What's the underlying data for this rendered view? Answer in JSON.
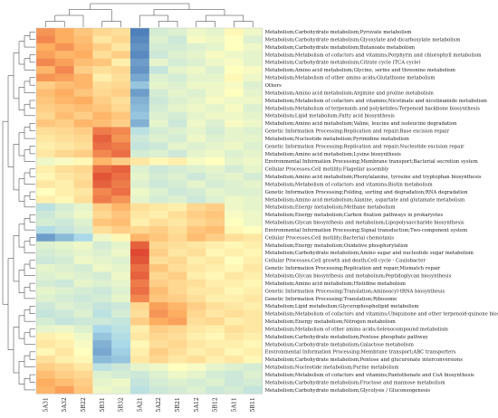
{
  "chart_data": {
    "type": "heatmap",
    "title": "",
    "columns": [
      "5A31",
      "5A32",
      "5B22",
      "5B31",
      "5B32",
      "5A21",
      "5A22",
      "5B21",
      "5A12",
      "5B12",
      "5A11",
      "5B11"
    ],
    "rows": [
      "Metabolism;Carbohydrate metabolism;Pyruvate metabolism",
      "Metabolism;Carbohydrate metabolism;Glyoxylate and dicarboxylate metabolism",
      "Metabolism;Carbohydrate metabolism;Butanoate metabolism",
      "Metabolism;Metabolism of cofactors and vitamins;Porphyrin and chlorophyll metabolism",
      "Metabolism;Carbohydrate metabolism;Citrate cycle (TCA cycle)",
      "Metabolism;Amino acid metabolism;Glycine, serine and threonine metabolism",
      "Metabolism;Metabolism of other amino acids;Glutathione metabolism",
      "Others",
      "Metabolism;Amino acid metabolism;Arginine and proline metabolism",
      "Metabolism;Metabolism of cofactors and vitamins;Nicotinate and nicotinamide metabolism",
      "Metabolism;Metabolism of terpenoids and polyketides;Terpenoid backbone biosynthesis",
      "Metabolism;Lipid metabolism;Fatty acid biosynthesis",
      "Metabolism;Amino acid metabolism;Valine, leucine and isoleucine degradation",
      "Genetic Information Processing;Replication and repair;Base excision repair",
      "Metabolism;Nucleotide metabolism;Pyrimidine metabolism",
      "Genetic Information Processing;Replication and repair;Nucleotide excision repair",
      "Metabolism;Amino acid metabolism;Lysine biosynthesis",
      "Environmental Information Processing;Membrane transport;Bacterial secretion system",
      "Cellular Processes;Cell motility;Flagellar assembly",
      "Metabolism;Amino acid metabolism;Phenylalanine, tyrosine and tryptophan biosynthesis",
      "Metabolism;Metabolism of cofactors and vitamins;Biotin metabolism",
      "Genetic Information Processing;Folding, sorting and degradation;RNA degradation",
      "Metabolism;Amino acid metabolism;Alanine, aspartate and glutamate metabolism",
      "Metabolism;Energy metabolism;Methane metabolism",
      "Metabolism;Energy metabolism;Carbon fixation pathways in prokaryotes",
      "Metabolism;Glycan biosynthesis and metabolism;Lipopolysaccharide biosynthesis",
      "Environmental Information Processing;Signal transduction;Two-component system",
      "Cellular Processes;Cell motility;Bacterial chemotaxis",
      "Metabolism;Energy metabolism;Oxidative phosphorylation",
      "Metabolism;Carbohydrate metabolism;Amino sugar and nucleotide sugar metabolism",
      "Cellular Processes;Cell growth and death;Cell cycle - Caulobacter",
      "Genetic Information Processing;Replication and repair;Mismatch repair",
      "Metabolism;Glycan biosynthesis and metabolism;Peptidoglycan biosynthesis",
      "Metabolism;Amino acid metabolism;Histidine metabolism",
      "Genetic Information Processing;Translation;Aminoacyl-tRNA biosynthesis",
      "Genetic Information Processing;Translation;Ribosome",
      "Metabolism;Lipid metabolism;Glycerophospholipid metabolism",
      "Metabolism;Metabolism of cofactors and vitamins;Ubiquinone and other terpenoid-quinone biosynthesis",
      "Metabolism;Energy metabolism;Nitrogen metabolism",
      "Metabolism;Metabolism of other amino acids;Selenocompound metabolism",
      "Metabolism;Carbohydrate metabolism;Pentose phosphate pathway",
      "Metabolism;Carbohydrate metabolism;Galactose metabolism",
      "Environmental Information Processing;Membrane transport;ABC transporters",
      "Metabolism;Carbohydrate metabolism;Pentose and glucuronate interconversions",
      "Metabolism;Nucleotide metabolism;Purine metabolism",
      "Metabolism;Metabolism of cofactors and vitamins;Pantothenate and CoA biosynthesis",
      "Metabolism;Carbohydrate metabolism;Fructose and mannose metabolism",
      "Metabolism;Carbohydrate metabolism;Glycolysis / Gluconeogenesis"
    ],
    "scale": "z-score, -2 (blue) to 2 (red)",
    "colors": {
      "low": "#4575b4",
      "mid_low": "#abd9e9",
      "mid": "#ffffbf",
      "mid_high": "#fdae61",
      "high": "#d73027"
    },
    "values": [
      [
        1.2,
        1.0,
        0.7,
        0.5,
        0.4,
        -1.9,
        -0.5,
        -0.4,
        -0.2,
        -0.3,
        0.1,
        -0.2
      ],
      [
        1.3,
        1.0,
        0.8,
        0.3,
        0.5,
        -1.8,
        -0.4,
        -0.6,
        -0.1,
        -0.2,
        0.0,
        -0.4
      ],
      [
        1.0,
        1.2,
        0.9,
        0.6,
        0.3,
        -1.7,
        -0.5,
        -0.5,
        -0.4,
        -0.3,
        0.0,
        -0.2
      ],
      [
        1.1,
        0.9,
        1.0,
        0.4,
        0.6,
        -1.8,
        -0.6,
        -0.4,
        -0.3,
        -0.1,
        -0.2,
        -0.3
      ],
      [
        1.3,
        1.1,
        0.8,
        0.7,
        0.2,
        -1.6,
        -0.3,
        -0.5,
        -0.4,
        -0.2,
        -0.1,
        -0.3
      ],
      [
        0.9,
        1.3,
        0.6,
        0.4,
        0.5,
        -1.7,
        -0.7,
        -0.3,
        -0.2,
        -0.4,
        0.0,
        -0.1
      ],
      [
        1.2,
        1.1,
        0.9,
        0.2,
        0.4,
        -1.5,
        -0.4,
        -0.5,
        -0.3,
        -0.3,
        0.1,
        -0.2
      ],
      [
        0.6,
        0.8,
        0.9,
        0.4,
        0.5,
        -1.2,
        -0.3,
        -0.4,
        -0.2,
        -0.2,
        -0.1,
        -0.4
      ],
      [
        0.8,
        1.0,
        0.7,
        0.5,
        0.6,
        -1.6,
        -0.5,
        -0.3,
        -0.4,
        -0.2,
        0.0,
        -0.3
      ],
      [
        0.7,
        0.9,
        1.0,
        0.6,
        0.4,
        -1.4,
        -0.6,
        -0.4,
        -0.3,
        -0.1,
        -0.2,
        -0.2
      ],
      [
        0.6,
        0.7,
        0.8,
        0.7,
        0.5,
        -1.3,
        -0.5,
        -0.3,
        -0.2,
        -0.3,
        -0.1,
        -0.4
      ],
      [
        0.5,
        0.8,
        0.6,
        0.9,
        0.7,
        -1.2,
        -0.4,
        -0.5,
        -0.3,
        -0.2,
        -0.2,
        -0.3
      ],
      [
        0.7,
        0.6,
        0.9,
        0.8,
        0.6,
        -1.4,
        -0.3,
        -0.6,
        -0.2,
        -0.4,
        -0.1,
        -0.2
      ],
      [
        0.4,
        0.5,
        0.6,
        1.4,
        1.3,
        -0.8,
        -0.5,
        -0.4,
        -0.3,
        -0.5,
        -0.3,
        -0.4
      ],
      [
        0.3,
        0.4,
        0.5,
        1.6,
        1.2,
        -0.6,
        -0.4,
        -0.5,
        -0.2,
        -0.4,
        -0.3,
        -0.3
      ],
      [
        0.2,
        0.3,
        0.4,
        1.5,
        1.4,
        -0.7,
        -0.6,
        -0.3,
        -0.4,
        -0.3,
        -0.2,
        -0.4
      ],
      [
        0.3,
        0.5,
        0.6,
        1.3,
        1.5,
        -0.5,
        -0.4,
        -0.6,
        -0.3,
        -0.2,
        -0.4,
        -0.3
      ],
      [
        -0.2,
        -0.1,
        0.1,
        0.9,
        0.6,
        0.3,
        0.1,
        0.2,
        -0.1,
        0.0,
        -0.3,
        -0.2
      ],
      [
        0.2,
        0.4,
        0.5,
        1.5,
        1.6,
        -0.4,
        -0.6,
        -0.5,
        -0.4,
        -0.3,
        -0.5,
        -0.3
      ],
      [
        0.1,
        0.3,
        0.4,
        1.7,
        1.5,
        -0.3,
        -0.5,
        -0.4,
        -0.6,
        -0.4,
        -0.3,
        -0.5
      ],
      [
        0.3,
        0.2,
        0.5,
        1.6,
        1.4,
        -0.4,
        -0.6,
        -0.5,
        -0.3,
        -0.5,
        -0.4,
        -0.3
      ],
      [
        0.0,
        0.2,
        0.3,
        1.3,
        1.5,
        -0.2,
        -0.4,
        -0.6,
        -0.5,
        -0.3,
        -0.4,
        -0.4
      ],
      [
        0.2,
        0.1,
        0.4,
        1.4,
        1.2,
        -0.3,
        -0.5,
        -0.4,
        -0.6,
        -0.4,
        -0.2,
        -0.3
      ],
      [
        -0.8,
        -0.5,
        -0.3,
        0.6,
        0.9,
        0.4,
        0.3,
        0.2,
        0.5,
        0.6,
        -0.2,
        -0.3
      ],
      [
        -0.6,
        -0.4,
        -0.2,
        0.5,
        0.7,
        0.3,
        0.2,
        0.4,
        0.6,
        0.7,
        -0.1,
        -0.2
      ],
      [
        -0.5,
        -0.6,
        -0.4,
        0.7,
        0.8,
        0.2,
        0.4,
        0.3,
        0.5,
        0.6,
        0.0,
        -0.2
      ],
      [
        -0.9,
        -0.7,
        -0.5,
        0.4,
        0.6,
        0.5,
        0.6,
        0.4,
        0.7,
        0.8,
        0.1,
        0.0
      ],
      [
        -1.6,
        -1.3,
        -1.0,
        -0.2,
        0.1,
        0.9,
        0.7,
        0.5,
        0.8,
        0.6,
        0.4,
        0.3
      ],
      [
        -0.4,
        -0.3,
        -0.2,
        -0.5,
        -0.3,
        1.6,
        0.5,
        0.4,
        0.3,
        0.2,
        0.1,
        0.2
      ],
      [
        -0.5,
        -0.4,
        -0.3,
        -0.4,
        -0.2,
        1.8,
        0.6,
        0.3,
        0.4,
        0.1,
        0.2,
        0.1
      ],
      [
        -0.6,
        -0.5,
        -0.2,
        -0.3,
        -0.4,
        1.7,
        0.4,
        0.5,
        0.2,
        0.3,
        0.0,
        0.2
      ],
      [
        -0.3,
        -0.4,
        -0.5,
        -0.2,
        -0.3,
        1.5,
        0.7,
        0.4,
        0.3,
        0.2,
        0.1,
        0.3
      ],
      [
        -0.4,
        -0.3,
        -0.4,
        -0.5,
        -0.2,
        1.6,
        0.5,
        0.6,
        0.2,
        0.1,
        0.3,
        0.2
      ],
      [
        -0.5,
        -0.6,
        -0.3,
        -0.4,
        -0.3,
        1.4,
        0.6,
        0.5,
        0.4,
        0.2,
        0.2,
        0.1
      ],
      [
        -0.3,
        -0.4,
        -0.5,
        -0.6,
        -0.4,
        1.5,
        0.8,
        0.5,
        0.3,
        0.3,
        0.1,
        0.2
      ],
      [
        -0.4,
        -0.5,
        -0.6,
        -0.5,
        -0.3,
        1.3,
        0.7,
        0.6,
        0.4,
        0.2,
        0.2,
        0.3
      ],
      [
        -0.6,
        -0.4,
        -0.5,
        -0.7,
        -0.6,
        0.5,
        1.1,
        0.9,
        0.6,
        0.4,
        0.3,
        0.2
      ],
      [
        -0.7,
        -0.6,
        -0.4,
        -0.8,
        -0.5,
        0.4,
        1.2,
        1.0,
        0.5,
        0.3,
        0.4,
        0.3
      ],
      [
        -0.5,
        -0.7,
        -0.6,
        -0.6,
        -0.7,
        0.6,
        1.0,
        1.1,
        0.4,
        0.5,
        0.2,
        0.3
      ],
      [
        -0.3,
        -0.2,
        -0.4,
        -1.0,
        -0.8,
        0.2,
        0.6,
        0.5,
        0.3,
        0.2,
        0.4,
        0.3
      ],
      [
        0.2,
        0.1,
        -0.2,
        -1.2,
        -0.9,
        0.3,
        0.5,
        0.4,
        0.2,
        0.1,
        0.3,
        0.2
      ],
      [
        0.3,
        0.2,
        -0.1,
        -1.4,
        -1.0,
        0.1,
        0.4,
        0.5,
        0.3,
        0.2,
        0.2,
        0.1
      ],
      [
        0.1,
        0.3,
        0.0,
        -1.5,
        -1.1,
        0.2,
        0.6,
        0.4,
        0.2,
        0.3,
        0.1,
        0.2
      ],
      [
        0.4,
        0.2,
        0.1,
        -1.3,
        -1.2,
        0.3,
        0.5,
        0.3,
        0.4,
        0.2,
        0.3,
        0.1
      ],
      [
        0.6,
        0.5,
        0.3,
        -0.8,
        -0.6,
        -0.3,
        -0.2,
        0.0,
        -0.1,
        -0.3,
        -0.4,
        -0.5
      ],
      [
        0.8,
        0.6,
        0.5,
        -0.4,
        -0.5,
        -0.6,
        -0.4,
        -0.2,
        -0.3,
        -0.5,
        -0.6,
        -0.4
      ],
      [
        1.0,
        0.8,
        0.6,
        -0.3,
        -0.2,
        -0.7,
        -0.5,
        -0.4,
        -0.5,
        -0.4,
        -0.6,
        -0.5
      ],
      [
        0.9,
        1.1,
        0.7,
        -0.2,
        -0.3,
        -0.8,
        -0.6,
        -0.5,
        -0.4,
        -0.6,
        -0.5,
        -0.7
      ]
    ]
  }
}
